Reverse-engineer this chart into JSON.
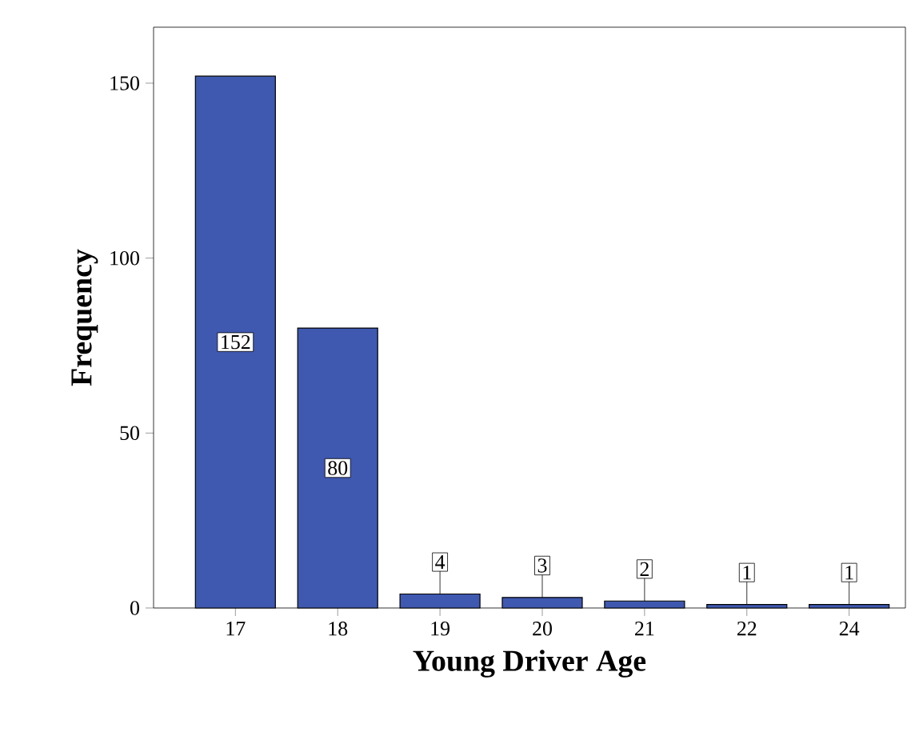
{
  "chart_data": {
    "type": "bar",
    "xlabel": "Young Driver Age",
    "ylabel": "Frequency",
    "categories": [
      "17",
      "18",
      "19",
      "20",
      "21",
      "22",
      "24"
    ],
    "values": [
      152,
      80,
      4,
      3,
      2,
      1,
      1
    ],
    "color": "#3f58b0",
    "ylim": [
      0,
      166
    ],
    "yticks": [
      0,
      50,
      100,
      150
    ],
    "data_labels": true
  }
}
